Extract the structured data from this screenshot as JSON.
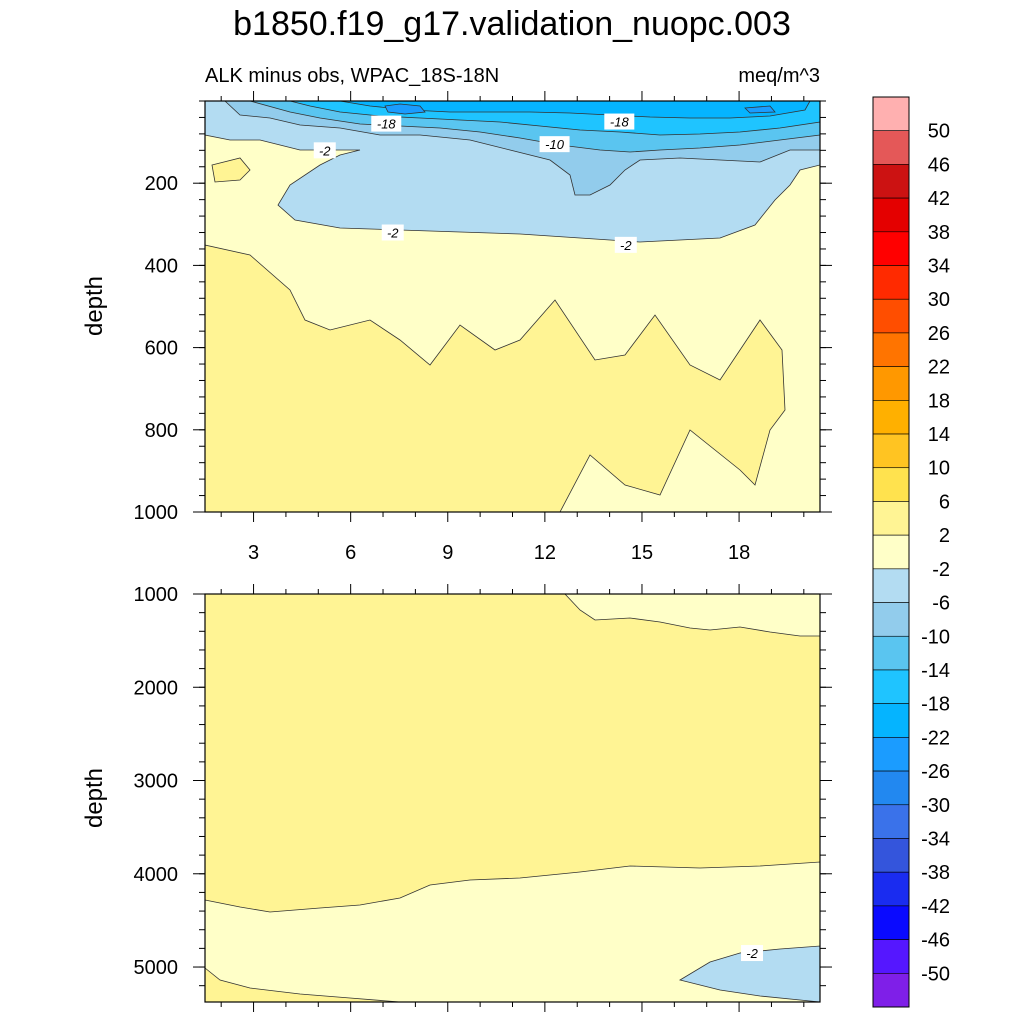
{
  "title": "b1850.f19_g17.validation_nuopc.003",
  "subtitle_left": "ALK minus obs, WPAC_18S-18N",
  "subtitle_right": "meq/m^3",
  "colors": {
    "bands": [
      "#7f1fe8",
      "#5517ff",
      "#0a0aff",
      "#1a2cf0",
      "#3455dc",
      "#3a72ea",
      "#2288f0",
      "#1b9cff",
      "#05b4ff",
      "#1fc4ff",
      "#5ac5f0",
      "#92ccec",
      "#b3dcf2",
      "#ffffc8",
      "#fff494",
      "#ffe24e",
      "#ffc422",
      "#ffb000",
      "#ff9800",
      "#ff7400",
      "#ff4e00",
      "#ff2a00",
      "#ff0000",
      "#e40000",
      "#cc1212",
      "#e45858",
      "#ffb0b0"
    ]
  },
  "chart_data": [
    {
      "type": "contour",
      "panel": "upper",
      "xlabel": "",
      "ylabel": "depth",
      "xticks": [
        3,
        6,
        9,
        12,
        15,
        18
      ],
      "xlim": [
        1.5,
        20.5
      ],
      "yticks": [
        200,
        400,
        600,
        800,
        1000
      ],
      "ylim": [
        0,
        1000
      ],
      "y_inverted": true,
      "contour_labels": [
        {
          "text": "-18",
          "x": 7.1,
          "y": 55
        },
        {
          "text": "-18",
          "x": 14.3,
          "y": 50
        },
        {
          "text": "-10",
          "x": 12.3,
          "y": 105
        },
        {
          "text": "-2",
          "x": 5.2,
          "y": 120
        },
        {
          "text": "-2",
          "x": 7.3,
          "y": 320
        },
        {
          "text": "-2",
          "x": 14.5,
          "y": 350
        }
      ]
    },
    {
      "type": "contour",
      "panel": "lower",
      "xlabel": "",
      "ylabel": "depth",
      "xticks": [
        3,
        6,
        9,
        12,
        15,
        18
      ],
      "xlim": [
        1.5,
        20.5
      ],
      "yticks": [
        1000,
        2000,
        3000,
        4000,
        5000
      ],
      "ylim": [
        1000,
        5375
      ],
      "y_inverted": true,
      "contour_labels": [
        {
          "text": "-2",
          "x": 18.4,
          "y": 4850
        }
      ]
    }
  ],
  "colorbar": {
    "labels": [
      "50",
      "46",
      "42",
      "38",
      "34",
      "30",
      "26",
      "22",
      "18",
      "14",
      "10",
      "6",
      "2",
      "-2",
      "-6",
      "-10",
      "-14",
      "-18",
      "-22",
      "-26",
      "-30",
      "-34",
      "-38",
      "-42",
      "-46",
      "-50"
    ]
  }
}
